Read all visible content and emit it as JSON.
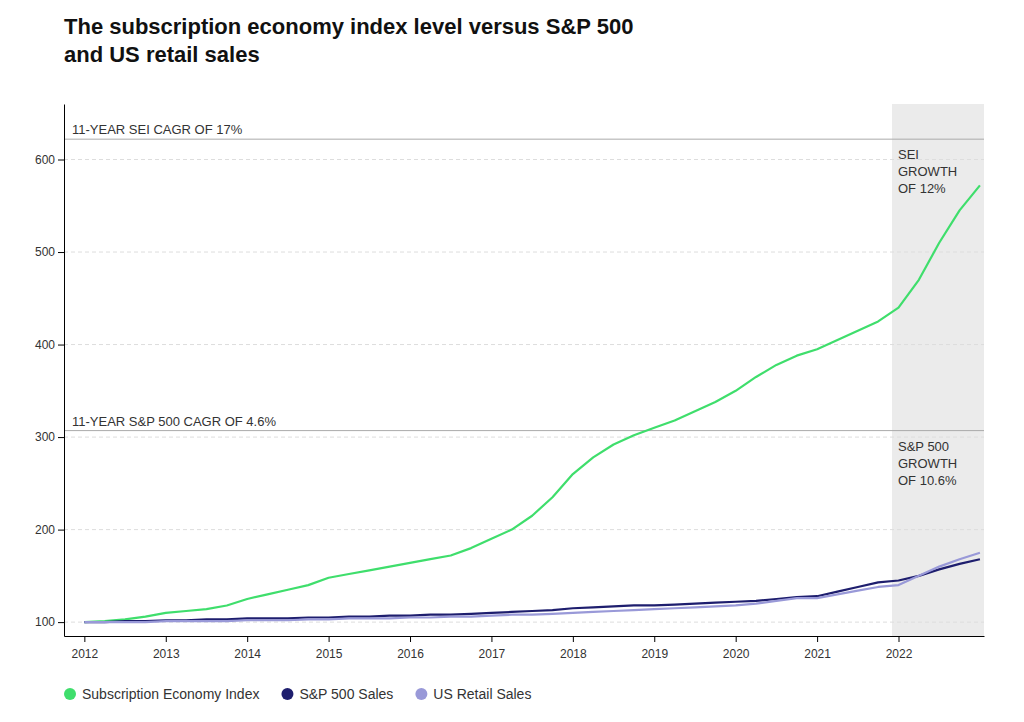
{
  "chart_data": {
    "type": "line",
    "title": "The subscription economy index level versus S&P 500\nand US retail sales",
    "x": [
      2012.0,
      2012.25,
      2012.5,
      2012.75,
      2013.0,
      2013.25,
      2013.5,
      2013.75,
      2014.0,
      2014.25,
      2014.5,
      2014.75,
      2015.0,
      2015.25,
      2015.5,
      2015.75,
      2016.0,
      2016.25,
      2016.5,
      2016.75,
      2017.0,
      2017.25,
      2017.5,
      2017.75,
      2018.0,
      2018.25,
      2018.5,
      2018.75,
      2019.0,
      2019.25,
      2019.5,
      2019.75,
      2020.0,
      2020.25,
      2020.5,
      2020.75,
      2021.0,
      2021.25,
      2021.5,
      2021.75,
      2022.0,
      2022.25,
      2022.5,
      2022.75,
      2023.0
    ],
    "series": [
      {
        "name": "Subscription Economy Index",
        "color": "#3fde6c",
        "values": [
          100,
          101,
          103,
          106,
          110,
          112,
          114,
          118,
          125,
          130,
          135,
          140,
          148,
          152,
          156,
          160,
          164,
          168,
          172,
          180,
          190,
          200,
          215,
          235,
          260,
          278,
          292,
          302,
          310,
          318,
          328,
          338,
          350,
          365,
          378,
          388,
          395,
          405,
          415,
          425,
          440,
          470,
          510,
          545,
          572
        ]
      },
      {
        "name": "S&P 500 Sales",
        "color": "#1e1e6e",
        "values": [
          100,
          100,
          101,
          101,
          102,
          102,
          103,
          103,
          104,
          104,
          104,
          105,
          105,
          106,
          106,
          107,
          107,
          108,
          108,
          109,
          110,
          111,
          112,
          113,
          115,
          116,
          117,
          118,
          118,
          119,
          120,
          121,
          122,
          123,
          125,
          127,
          128,
          133,
          138,
          143,
          145,
          150,
          157,
          163,
          168
        ]
      },
      {
        "name": "US Retail Sales",
        "color": "#9999d8",
        "values": [
          100,
          100,
          100,
          100,
          101,
          101,
          101,
          101,
          102,
          102,
          102,
          103,
          103,
          104,
          104,
          104,
          105,
          105,
          106,
          106,
          107,
          108,
          108,
          109,
          110,
          111,
          112,
          113,
          114,
          115,
          116,
          117,
          118,
          120,
          123,
          126,
          126,
          130,
          134,
          138,
          140,
          150,
          160,
          168,
          175
        ]
      }
    ],
    "xlim": [
      2011.75,
      2023.05
    ],
    "xticks": [
      2012,
      2013,
      2014,
      2015,
      2016,
      2017,
      2018,
      2019,
      2020,
      2021,
      2022
    ],
    "ylim": [
      85,
      660
    ],
    "yticks": [
      100,
      200,
      300,
      400,
      500,
      600
    ],
    "grid": true,
    "legend": "bottom",
    "shaded_x": [
      2021.92,
      2023.05
    ],
    "reference_lines": [
      {
        "value": 622,
        "label": "11-YEAR SEI CAGR OF 17%",
        "note": "SEI\nGROWTH\nOF 12%"
      },
      {
        "value": 307,
        "label": "11-YEAR S&P 500 CAGR OF 4.6%",
        "note": "S&P 500\nGROWTH\nOF 10.6%"
      }
    ]
  }
}
